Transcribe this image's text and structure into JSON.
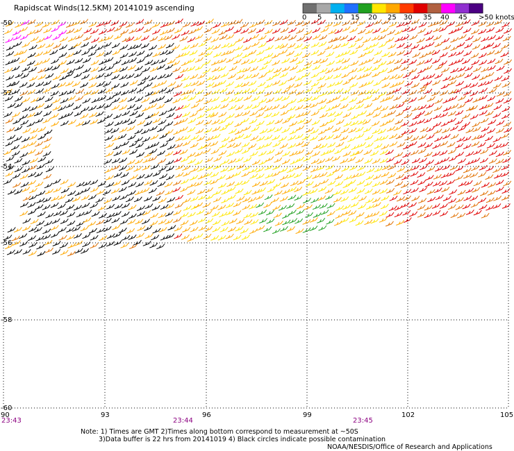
{
  "title": "Rapidscat Winds(12.5KM) 20141019 ascending",
  "legend": {
    "unit_label": ">50 knots",
    "ticks": [
      "0",
      "5",
      "10",
      "15",
      "20",
      "25",
      "30",
      "35",
      "40",
      "45"
    ],
    "swatches": [
      "#707070",
      "#a8a8a8",
      "#00b0f0",
      "#2070ff",
      "#20a020",
      "#ffe600",
      "#ffa800",
      "#ff3b00",
      "#e00000",
      "#b06040",
      "#ff00ff",
      "#9030d0",
      "#4b0082"
    ]
  },
  "map": {
    "lon_labels": [
      "90",
      "93",
      "96",
      "99",
      "102",
      "105"
    ],
    "lat_labels": [
      "-50",
      "-52",
      "-54",
      "-56",
      "-58",
      "-60"
    ],
    "times": [
      "23:43",
      "23:44",
      "23:45"
    ],
    "time_color": "#8b0080",
    "wind_colors": {
      "calm": "#000000",
      "light": "#20a020",
      "moderate": "#ffe600",
      "fresh": "#ffa800",
      "strong": "#e07000",
      "gale": "#e00000",
      "storm": "#ff00ff"
    }
  },
  "notes": [
    "Note: 1) Times are GMT 2)Times along bottom correspond to measurement at ~50S",
    "3)Data buffer is 22 hrs from 20141019 4) Black circles indicate possible contamination",
    "NOAA/NESDIS/Office of Research and Applications"
  ]
}
